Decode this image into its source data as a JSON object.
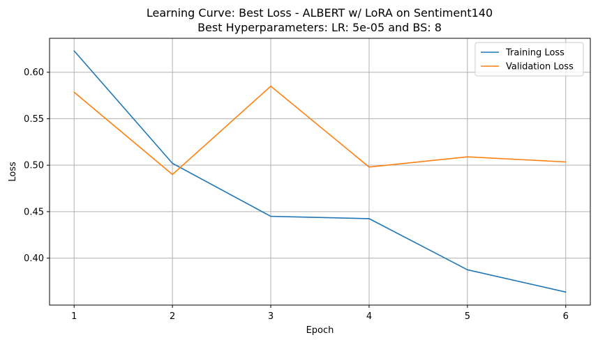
{
  "chart_data": {
    "type": "line",
    "title": "Learning Curve: Best Loss - ALBERT w/ LoRA on Sentiment140",
    "subtitle": "Best Hyperparameters: LR: 5e-05 and BS: 8",
    "xlabel": "Epoch",
    "ylabel": "Loss",
    "x": [
      1,
      2,
      3,
      4,
      5,
      6
    ],
    "xlim": [
      0.75,
      6.25
    ],
    "ylim": [
      0.3495,
      0.6365
    ],
    "xticks": [
      1,
      2,
      3,
      4,
      5,
      6
    ],
    "xtick_labels": [
      "1",
      "2",
      "3",
      "4",
      "5",
      "6"
    ],
    "yticks": [
      0.4,
      0.45,
      0.5,
      0.55,
      0.6
    ],
    "ytick_labels": [
      "0.40",
      "0.45",
      "0.50",
      "0.55",
      "0.60"
    ],
    "grid": true,
    "legend_position": "top-right",
    "series": [
      {
        "name": "Training Loss",
        "color": "#1f77b4",
        "values": [
          0.623,
          0.502,
          0.445,
          0.4425,
          0.3875,
          0.3635
        ]
      },
      {
        "name": "Validation Loss",
        "color": "#ff7f0e",
        "values": [
          0.5785,
          0.49,
          0.585,
          0.498,
          0.509,
          0.5035
        ]
      }
    ]
  }
}
